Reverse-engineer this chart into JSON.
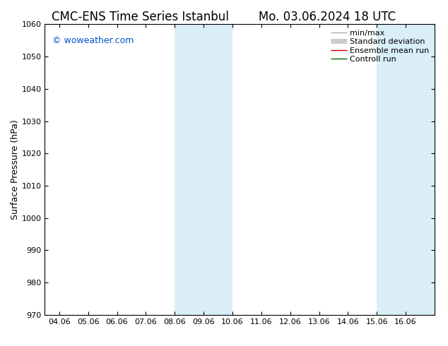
{
  "title_left": "CMC-ENS Time Series Istanbul",
  "title_right": "Mo. 03.06.2024 18 UTC",
  "ylabel": "Surface Pressure (hPa)",
  "ylim": [
    970,
    1060
  ],
  "yticks": [
    970,
    980,
    990,
    1000,
    1010,
    1020,
    1030,
    1040,
    1050,
    1060
  ],
  "xtick_labels": [
    "04.06",
    "05.06",
    "06.06",
    "07.06",
    "08.06",
    "09.06",
    "10.06",
    "11.06",
    "12.06",
    "13.06",
    "14.06",
    "15.06",
    "16.06"
  ],
  "xtick_positions": [
    0,
    1,
    2,
    3,
    4,
    5,
    6,
    7,
    8,
    9,
    10,
    11,
    12
  ],
  "xlim_min": -0.5,
  "xlim_max": 13.0,
  "shaded_bands": [
    {
      "x_start": 4,
      "x_end": 5,
      "color": "#daeef8"
    },
    {
      "x_start": 5,
      "x_end": 6,
      "color": "#daeef8"
    },
    {
      "x_start": 11,
      "x_end": 13.0,
      "color": "#daeef8"
    }
  ],
  "watermark": "© woweather.com",
  "watermark_color": "#0055cc",
  "bg_color": "#ffffff",
  "legend_entries": [
    {
      "label": "min/max",
      "color": "#aaaaaa",
      "lw": 1.0
    },
    {
      "label": "Standard deviation",
      "color": "#cccccc",
      "lw": 5
    },
    {
      "label": "Ensemble mean run",
      "color": "#cc0000",
      "lw": 1.0
    },
    {
      "label": "Controll run",
      "color": "#006600",
      "lw": 1.0
    }
  ],
  "title_fontsize": 12,
  "ylabel_fontsize": 9,
  "tick_fontsize": 8,
  "watermark_fontsize": 9,
  "legend_fontsize": 8
}
